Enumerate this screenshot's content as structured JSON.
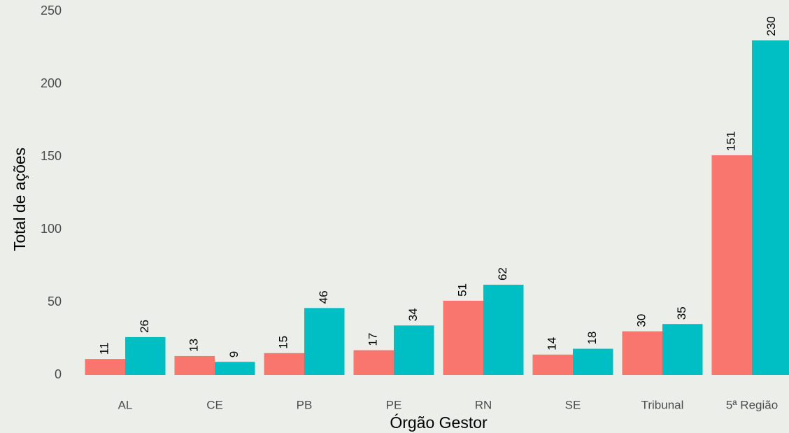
{
  "chart_data": {
    "type": "bar",
    "x_label": "Órgão Gestor",
    "y_label": "Total de ações",
    "categories": [
      "AL",
      "CE",
      "PB",
      "PE",
      "RN",
      "SE",
      "Tribunal",
      "5ª Região"
    ],
    "series": [
      {
        "color": "#F8766D",
        "values": [
          11,
          13,
          15,
          17,
          51,
          14,
          30,
          151
        ]
      },
      {
        "color": "#00BFC4",
        "values": [
          26,
          9,
          46,
          34,
          62,
          18,
          35,
          230
        ]
      }
    ],
    "ylim": [
      0,
      250
    ],
    "yticks": [
      0,
      50,
      100,
      150,
      200,
      250
    ],
    "grid": false,
    "data_labels": true
  }
}
